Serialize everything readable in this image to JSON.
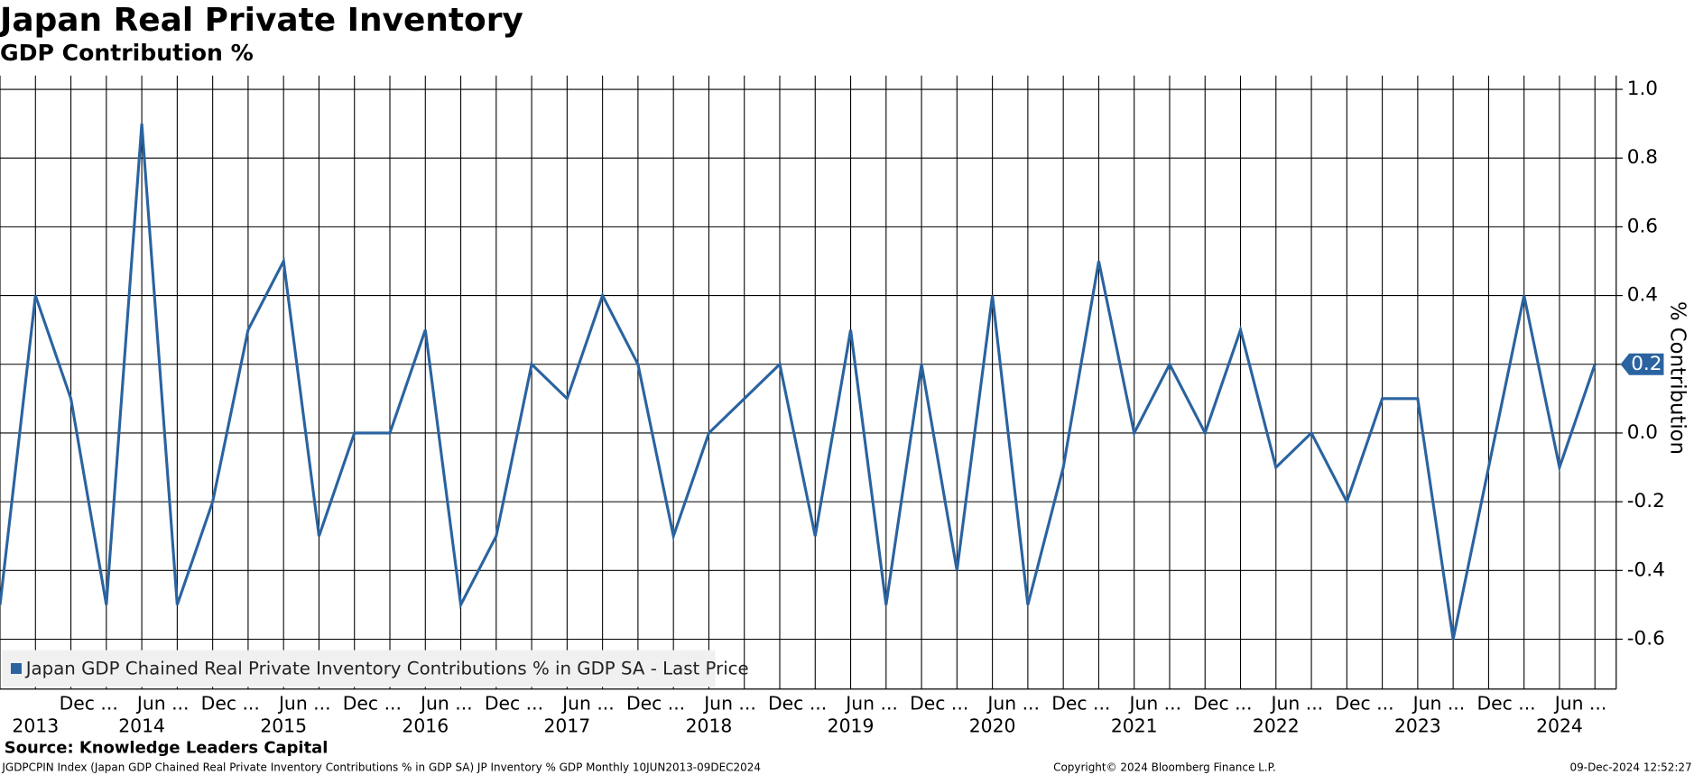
{
  "chart_data": {
    "type": "line",
    "title": "Japan Real Private Inventory",
    "subtitle": "GDP Contribution %",
    "y_axis_label": "% Contribution",
    "series": [
      {
        "name": "Japan GDP Chained Real Private Inventory Contributions % in GDP SA - Last Price",
        "color": "#2a63a0",
        "values": [
          -0.5,
          0.4,
          0.1,
          -0.5,
          0.9,
          -0.5,
          -0.2,
          0.3,
          0.5,
          -0.3,
          0.0,
          0.0,
          0.3,
          -0.5,
          -0.3,
          0.2,
          0.1,
          0.4,
          0.2,
          -0.3,
          0.0,
          0.1,
          0.2,
          -0.3,
          0.3,
          -0.5,
          0.2,
          -0.4,
          0.4,
          -0.5,
          -0.1,
          0.5,
          0.0,
          0.2,
          0.0,
          0.3,
          -0.1,
          0.0,
          -0.2,
          0.1,
          0.1,
          -0.6,
          -0.1,
          0.4,
          -0.1,
          0.2
        ],
        "last_value_label": "0.2"
      }
    ],
    "xlim": [
      0,
      45.6
    ],
    "xticks_upper": [
      {
        "value": 2.5,
        "label": "Dec ..."
      },
      {
        "value": 4.6,
        "label": "Jun ..."
      },
      {
        "value": 6.5,
        "label": "Dec ..."
      },
      {
        "value": 8.6,
        "label": "Jun ..."
      },
      {
        "value": 10.5,
        "label": "Dec ..."
      },
      {
        "value": 12.6,
        "label": "Jun ..."
      },
      {
        "value": 14.5,
        "label": "Dec ..."
      },
      {
        "value": 16.6,
        "label": "Jun ..."
      },
      {
        "value": 18.5,
        "label": "Dec ..."
      },
      {
        "value": 20.6,
        "label": "Jun ..."
      },
      {
        "value": 22.5,
        "label": "Dec ..."
      },
      {
        "value": 24.6,
        "label": "Jun ..."
      },
      {
        "value": 26.5,
        "label": "Dec ..."
      },
      {
        "value": 28.6,
        "label": "Jun ..."
      },
      {
        "value": 30.5,
        "label": "Dec ..."
      },
      {
        "value": 32.6,
        "label": "Jun ..."
      },
      {
        "value": 34.5,
        "label": "Dec ..."
      },
      {
        "value": 36.6,
        "label": "Jun ..."
      },
      {
        "value": 38.5,
        "label": "Dec ..."
      },
      {
        "value": 40.6,
        "label": "Jun ..."
      },
      {
        "value": 42.5,
        "label": "Dec ..."
      },
      {
        "value": 44.6,
        "label": "Jun ..."
      }
    ],
    "xticks_years": [
      {
        "value": 1,
        "label": "2013"
      },
      {
        "value": 4,
        "label": "2014"
      },
      {
        "value": 8,
        "label": "2015"
      },
      {
        "value": 12,
        "label": "2016"
      },
      {
        "value": 16,
        "label": "2017"
      },
      {
        "value": 20,
        "label": "2018"
      },
      {
        "value": 24,
        "label": "2019"
      },
      {
        "value": 28,
        "label": "2020"
      },
      {
        "value": 32,
        "label": "2021"
      },
      {
        "value": 36,
        "label": "2022"
      },
      {
        "value": 40,
        "label": "2023"
      },
      {
        "value": 44,
        "label": "2024"
      }
    ],
    "ylim": [
      -0.745,
      1.04
    ],
    "yticks": [
      {
        "value": -0.6,
        "label": "-0.6"
      },
      {
        "value": -0.4,
        "label": "-0.4"
      },
      {
        "value": -0.2,
        "label": "-0.2"
      },
      {
        "value": 0.0,
        "label": "0.0"
      },
      {
        "value": 0.2,
        "label": "0.2"
      },
      {
        "value": 0.4,
        "label": "0.4"
      },
      {
        "value": 0.6,
        "label": "0.6"
      },
      {
        "value": 0.8,
        "label": "0.8"
      },
      {
        "value": 1.0,
        "label": "1.0"
      }
    ],
    "grid": true,
    "source": "Source: Knowledge Leaders Capital",
    "footer_left": "JGDPCPIN Index (Japan GDP Chained Real Private Inventory Contributions % in GDP SA) JP Inventory % GDP  Monthly 10JUN2013-09DEC2024",
    "footer_center": "Copyright© 2024 Bloomberg Finance L.P.",
    "footer_right": "09-Dec-2024 12:52:27"
  }
}
